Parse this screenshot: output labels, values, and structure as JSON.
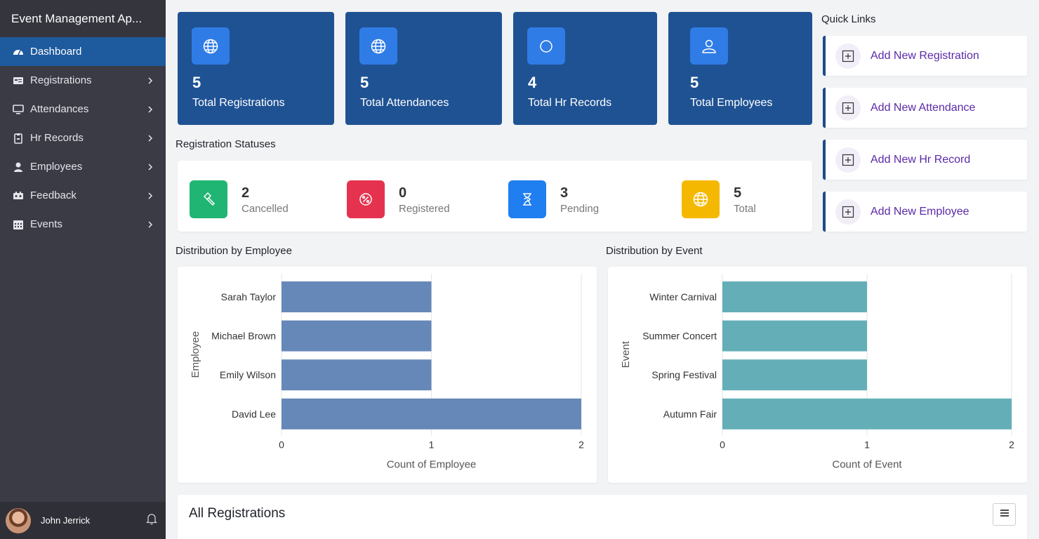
{
  "app": {
    "title": "Event Management Ap..."
  },
  "sidebar": {
    "items": [
      {
        "label": "Dashboard",
        "icon": "dashboard-icon",
        "active": true
      },
      {
        "label": "Registrations",
        "icon": "registrations-icon"
      },
      {
        "label": "Attendances",
        "icon": "monitor-icon"
      },
      {
        "label": "Hr Records",
        "icon": "clipboard-icon"
      },
      {
        "label": "Employees",
        "icon": "user-icon"
      },
      {
        "label": "Feedback",
        "icon": "feedback-icon"
      },
      {
        "label": "Events",
        "icon": "calendar-icon"
      }
    ]
  },
  "user": {
    "name": "John Jerrick"
  },
  "stats": [
    {
      "value": "5",
      "label": "Total Registrations",
      "icon": "globe-icon"
    },
    {
      "value": "5",
      "label": "Total Attendances",
      "icon": "globe-icon"
    },
    {
      "value": "4",
      "label": "Total Hr Records",
      "icon": "circle-icon"
    },
    {
      "value": "5",
      "label": "Total Employees",
      "icon": "user-icon"
    }
  ],
  "registration_statuses": {
    "title": "Registration Statuses",
    "items": [
      {
        "value": "2",
        "label": "Cancelled",
        "color": "#21b573",
        "icon": "hammer-icon"
      },
      {
        "value": "0",
        "label": "Registered",
        "color": "#e5334f",
        "icon": "percent-icon"
      },
      {
        "value": "3",
        "label": "Pending",
        "color": "#1f7ef0",
        "icon": "hourglass-icon"
      },
      {
        "value": "5",
        "label": "Total",
        "color": "#f5b800",
        "icon": "globe-icon"
      }
    ]
  },
  "quick_links": {
    "title": "Quick Links",
    "items": [
      {
        "label": "Add New Registration",
        "icon": "plus-square-icon"
      },
      {
        "label": "Add New Attendance",
        "icon": "plus-square-icon"
      },
      {
        "label": "Add New Hr Record",
        "icon": "plus-square-icon"
      },
      {
        "label": "Add New Employee",
        "icon": "plus-square-icon"
      }
    ]
  },
  "charts": {
    "employee_title": "Distribution by Employee",
    "event_title": "Distribution by Event"
  },
  "chart_data": [
    {
      "type": "bar",
      "orientation": "horizontal",
      "categories": [
        "Sarah Taylor",
        "Michael Brown",
        "Emily Wilson",
        "David Lee"
      ],
      "values": [
        1,
        1,
        1,
        2
      ],
      "xlabel": "Count of Employee",
      "ylabel": "Employee",
      "xlim": [
        0,
        2
      ],
      "xticks": [
        "0",
        "1",
        "2"
      ],
      "color": "#6688b8",
      "grid": true
    },
    {
      "type": "bar",
      "orientation": "horizontal",
      "categories": [
        "Winter Carnival",
        "Summer Concert",
        "Spring Festival",
        "Autumn Fair"
      ],
      "values": [
        1,
        1,
        1,
        2
      ],
      "xlabel": "Count of Event",
      "ylabel": "Event",
      "xlim": [
        0,
        2
      ],
      "xticks": [
        "0",
        "1",
        "2"
      ],
      "color": "#64afb7",
      "grid": true
    }
  ],
  "all_registrations": {
    "title": "All Registrations"
  }
}
